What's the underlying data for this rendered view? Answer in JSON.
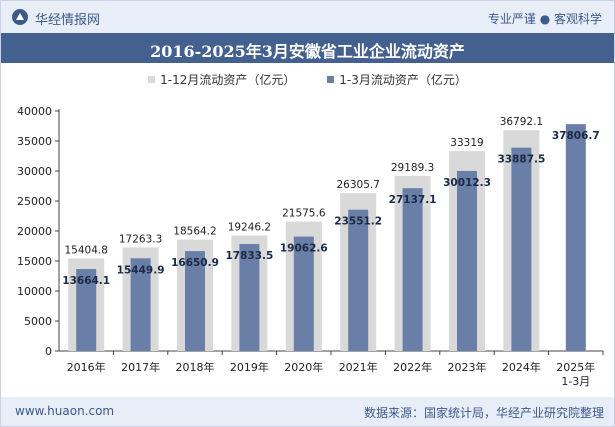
{
  "header": {
    "brand": "华经情报网",
    "tagline": "专业严谨 ● 客观科学"
  },
  "footer": {
    "website": "www.huaon.com",
    "source": "数据来源：国家统计局，华经产业研究院整理"
  },
  "colors": {
    "series_12m": "#d9d9d9",
    "series_3m": "#6a7fa8",
    "title_bar": "#44608e"
  },
  "chart_data": {
    "type": "bar",
    "title": "2016-2025年3月安徽省工业企业流动资产",
    "categories": [
      "2016年",
      "2017年",
      "2018年",
      "2019年",
      "2020年",
      "2021年",
      "2022年",
      "2023年",
      "2024年",
      "2025年\n1-3月"
    ],
    "series": [
      {
        "name": "1-12月流动资产（亿元）",
        "values": [
          15404.8,
          17263.3,
          18564.2,
          19246.2,
          21575.6,
          26305.7,
          29189.3,
          33319,
          36792.1,
          null
        ],
        "labels": [
          "15404.8",
          "17263.3",
          "18564.2",
          "19246.2",
          "21575.6",
          "26305.7",
          "29189.3",
          "33319",
          "36792.1",
          ""
        ]
      },
      {
        "name": "1-3月流动资产（亿元）",
        "values": [
          13664.1,
          15449.9,
          16650.9,
          17833.5,
          19062.6,
          23551.2,
          27137.1,
          30012.3,
          33887.5,
          37806.7
        ],
        "labels": [
          "13664.1",
          "15449.9",
          "16650.9",
          "17833.5",
          "19062.6",
          "23551.2",
          "27137.1",
          "30012.3",
          "33887.5",
          "37806.7"
        ]
      }
    ],
    "ylim": [
      0,
      40000
    ],
    "yticks": [
      0,
      5000,
      10000,
      15000,
      20000,
      25000,
      30000,
      35000,
      40000
    ],
    "grid": false,
    "legend_position": "top"
  }
}
